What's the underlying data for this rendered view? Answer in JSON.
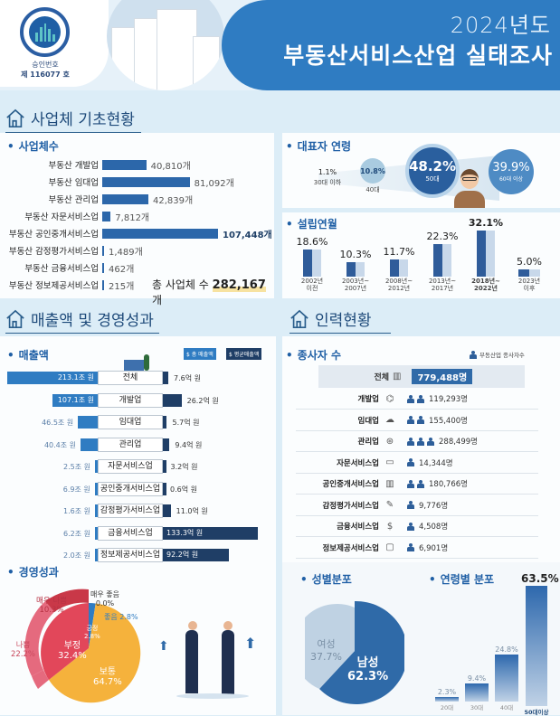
{
  "header": {
    "emblem_text": "국가승인",
    "emblem_ring": "NATIONAL STATISTICS",
    "approval_label": "승인번호",
    "approval_number": "제 116077 호",
    "year": "2024년도",
    "title": "부동산서비스산업 실태조사"
  },
  "sections": {
    "basic": "사업체 기초현황",
    "sales": "매출액 및 경영성과",
    "workforce": "인력현황"
  },
  "business_count": {
    "title": "사업체수",
    "items": [
      {
        "label": "부동산 개발업",
        "value": "40,810개",
        "n": 40810
      },
      {
        "label": "부동산 임대업",
        "value": "81,092개",
        "n": 81092
      },
      {
        "label": "부동산 관리업",
        "value": "42,839개",
        "n": 42839
      },
      {
        "label": "부동산 자문서비스업",
        "value": "7,812개",
        "n": 7812
      },
      {
        "label": "부동산 공인중개서비스업",
        "value": "107,448개",
        "n": 107448
      },
      {
        "label": "부동산 감정평가서비스업",
        "value": "1,489개",
        "n": 1489
      },
      {
        "label": "부동산 금융서비스업",
        "value": "462개",
        "n": 462
      },
      {
        "label": "부동산 정보제공서비스업",
        "value": "215개",
        "n": 215
      }
    ],
    "total_label": "총 사업체 수",
    "total_value": "282,167",
    "total_unit": "개"
  },
  "ceo_age": {
    "title": "대표자 연령",
    "items": [
      {
        "pct": "1.1%",
        "label": "30대 이하"
      },
      {
        "pct": "10.8%",
        "label": "40대"
      },
      {
        "pct": "48.2%",
        "label": "50대"
      },
      {
        "pct": "39.9%",
        "label": "60대 이상"
      }
    ]
  },
  "founding": {
    "title": "설립연월",
    "items": [
      {
        "pct": "18.6%",
        "y1": "2002년",
        "y2": "이전",
        "n": 18.6
      },
      {
        "pct": "10.3%",
        "y1": "2003년~",
        "y2": "2007년",
        "n": 10.3
      },
      {
        "pct": "11.7%",
        "y1": "2008년~",
        "y2": "2012년",
        "n": 11.7
      },
      {
        "pct": "22.3%",
        "y1": "2013년~",
        "y2": "2017년",
        "n": 22.3
      },
      {
        "pct": "32.1%",
        "y1": "2018년~",
        "y2": "2022년",
        "n": 32.1
      },
      {
        "pct": "5.0%",
        "y1": "2023년",
        "y2": "이후",
        "n": 5.0
      }
    ]
  },
  "sales": {
    "title": "매출액",
    "legend_total": "총 매출액",
    "legend_avg": "평균매출액",
    "items": [
      {
        "label": "전체",
        "total": "213.1조 원",
        "avg": "7.6억 원",
        "t": 213.1,
        "a": 7.6
      },
      {
        "label": "개발업",
        "total": "107.1조 원",
        "avg": "26.2억 원",
        "t": 107.1,
        "a": 26.2
      },
      {
        "label": "임대업",
        "total": "46.5조 원",
        "avg": "5.7억 원",
        "t": 46.5,
        "a": 5.7
      },
      {
        "label": "관리업",
        "total": "40.4조 원",
        "avg": "9.4억 원",
        "t": 40.4,
        "a": 9.4
      },
      {
        "label": "자문서비스업",
        "total": "2.5조 원",
        "avg": "3.2억 원",
        "t": 2.5,
        "a": 3.2
      },
      {
        "label": "공인중개서비스업",
        "total": "6.9조 원",
        "avg": "0.6억 원",
        "t": 6.9,
        "a": 0.6
      },
      {
        "label": "감정평가서비스업",
        "total": "1.6조 원",
        "avg": "11.0억 원",
        "t": 1.6,
        "a": 11.0
      },
      {
        "label": "금융서비스업",
        "total": "6.2조 원",
        "avg": "133.3억 원",
        "t": 6.2,
        "a": 133.3
      },
      {
        "label": "정보제공서비스업",
        "total": "2.0조 원",
        "avg": "92.2억 원",
        "t": 2.0,
        "a": 92.2
      }
    ]
  },
  "performance": {
    "title": "경영성과",
    "very_good_label": "매우 좋음",
    "very_good": "0.0%",
    "good_label": "좋음 2.8%",
    "positive_label": "긍정",
    "positive": "2.8%",
    "very_bad_label": "매우 나쁨",
    "very_bad": "10.3%",
    "bad_label": "나쁨",
    "bad": "22.2%",
    "negative_label": "부정",
    "negative": "32.4%",
    "neutral_label": "보통",
    "neutral": "64.7%"
  },
  "employees": {
    "title": "종사자 수",
    "legend": "부동산업 종사자수",
    "total_label": "전체",
    "total_value": "779,488명",
    "items": [
      {
        "label": "개발업",
        "icon": "⌬",
        "people": 2,
        "value": "119,293명"
      },
      {
        "label": "임대업",
        "icon": "☁",
        "people": 2,
        "value": "155,400명"
      },
      {
        "label": "관리업",
        "icon": "⊛",
        "people": 3,
        "value": "288,499명"
      },
      {
        "label": "자문서비스업",
        "icon": "▭",
        "people": 1,
        "value": "14,344명"
      },
      {
        "label": "공인중개서비스업",
        "icon": "▥",
        "people": 2,
        "value": "180,766명"
      },
      {
        "label": "감정평가서비스업",
        "icon": "✎",
        "people": 1,
        "value": "9,776명"
      },
      {
        "label": "금융서비스업",
        "icon": "$",
        "people": 1,
        "value": "4,508명"
      },
      {
        "label": "정보제공서비스업",
        "icon": "▢",
        "people": 1,
        "value": "6,901명"
      }
    ]
  },
  "gender": {
    "title": "성별분포",
    "male_label": "남성",
    "male": "62.3%",
    "female_label": "여성",
    "female": "37.7%"
  },
  "age_dist": {
    "title": "연령별 분포",
    "items": [
      {
        "label": "20대",
        "pct": "2.3%",
        "n": 2.3
      },
      {
        "label": "30대",
        "pct": "9.4%",
        "n": 9.4
      },
      {
        "label": "40대",
        "pct": "24.8%",
        "n": 24.8
      },
      {
        "label": "50대이상",
        "pct": "63.5%",
        "n": 63.5
      }
    ]
  },
  "colors": {
    "primary": "#2f7cc2",
    "dark": "#1f3e66",
    "bar": "#2c67aa",
    "neutral": "#f5b23c",
    "negative": "#e2475a"
  }
}
